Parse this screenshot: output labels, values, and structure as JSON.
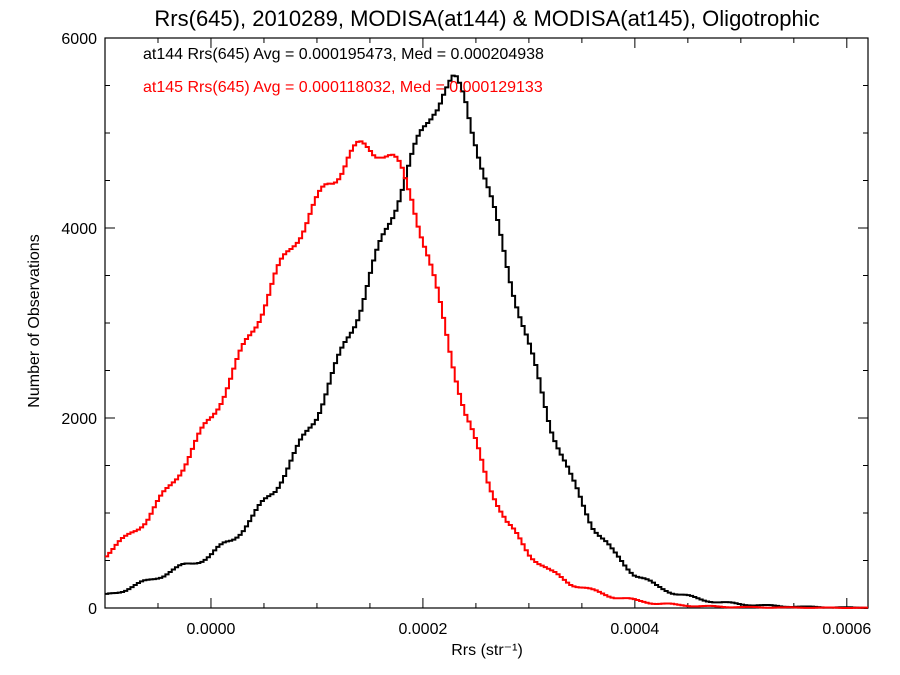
{
  "chart_data": {
    "type": "line",
    "title": "Rrs(645), 2010289, MODISA(at144) & MODISA(at145), Oligotrophic",
    "xlabel": "Rrs (str⁻¹)",
    "ylabel": "Number of Observations",
    "xlim": [
      -0.0001,
      0.00062
    ],
    "ylim": [
      0,
      6000
    ],
    "xticks": [
      0.0,
      0.0002,
      0.0004,
      0.0006
    ],
    "xtick_labels": [
      "0.0000",
      "0.0002",
      "0.0004",
      "0.0006"
    ],
    "yticks": [
      0,
      2000,
      4000,
      6000
    ],
    "ytick_labels": [
      "0",
      "2000",
      "4000",
      "6000"
    ],
    "grid": false,
    "annotations": [
      {
        "text": "at144 Rrs(645) Avg = 0.000195473, Med = 0.000204938",
        "color": "#000000"
      },
      {
        "text": "at145 Rrs(645) Avg = 0.000118032, Med = 0.000129133",
        "color": "#ff0000"
      }
    ],
    "series": [
      {
        "color": "#000000",
        "x": [
          -0.0001,
          -8e-05,
          -6e-05,
          -4e-05,
          -2e-05,
          0.0,
          2e-05,
          4e-05,
          6e-05,
          8e-05,
          0.0001,
          0.00012,
          0.00014,
          0.00016,
          0.00018,
          0.0002,
          0.00021,
          0.00022,
          0.00023,
          0.00024,
          0.00025,
          0.00026,
          0.00028,
          0.0003,
          0.00032,
          0.00034,
          0.00036,
          0.00038,
          0.0004,
          0.00042,
          0.00044,
          0.00046,
          0.00048,
          0.0005,
          0.00052,
          0.00054,
          0.00056,
          0.00058,
          0.0006,
          0.00062
        ],
        "values": [
          130,
          200,
          280,
          380,
          460,
          560,
          720,
          960,
          1250,
          1620,
          2050,
          2580,
          3150,
          3800,
          4450,
          5000,
          5280,
          5450,
          5520,
          5350,
          4950,
          4450,
          3600,
          2750,
          1950,
          1350,
          880,
          570,
          360,
          230,
          150,
          95,
          60,
          40,
          28,
          18,
          12,
          8,
          5,
          3
        ]
      },
      {
        "color": "#ff0000",
        "x": [
          -0.0001,
          -8e-05,
          -6e-05,
          -4e-05,
          -2e-05,
          0.0,
          2e-05,
          4e-05,
          6e-05,
          8e-05,
          0.0001,
          0.00011,
          0.00012,
          0.00013,
          0.00014,
          0.00015,
          0.00016,
          0.00017,
          0.00018,
          0.00019,
          0.0002,
          0.00022,
          0.00024,
          0.00026,
          0.00028,
          0.0003,
          0.00032,
          0.00034,
          0.00036,
          0.00038,
          0.0004,
          0.00042,
          0.00044,
          0.00046,
          0.00048,
          0.0005,
          0.00054,
          0.00058,
          0.00062
        ],
        "values": [
          560,
          730,
          950,
          1250,
          1620,
          2000,
          2450,
          2950,
          3450,
          3900,
          4250,
          4450,
          4600,
          4750,
          4820,
          4850,
          4830,
          4720,
          4580,
          4350,
          3900,
          3000,
          2050,
          1380,
          880,
          580,
          380,
          260,
          180,
          120,
          80,
          50,
          32,
          20,
          14,
          9,
          5,
          3,
          2
        ]
      }
    ]
  }
}
